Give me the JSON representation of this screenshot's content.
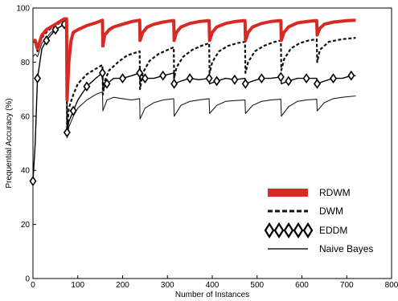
{
  "chart_data": {
    "type": "line",
    "title": "",
    "xlabel": "Number of Instances",
    "ylabel": "Prequential Accuracy (%)",
    "xlim": [
      0,
      800
    ],
    "ylim": [
      0,
      100
    ],
    "xticks": [
      0,
      100,
      200,
      300,
      400,
      500,
      600,
      700,
      800
    ],
    "yticks": [
      0,
      20,
      40,
      60,
      80,
      100
    ],
    "grid": false,
    "legend_position": "bottom-right",
    "series": [
      {
        "name": "RDWM",
        "color": "#d62a22",
        "style": "thick-solid",
        "x": [
          0,
          5,
          10,
          20,
          30,
          40,
          50,
          60,
          70,
          75,
          76,
          80,
          85,
          90,
          100,
          120,
          140,
          155,
          156,
          160,
          170,
          180,
          200,
          220,
          238,
          239,
          245,
          255,
          270,
          290,
          310,
          314,
          315,
          320,
          330,
          350,
          370,
          390,
          393,
          394,
          400,
          410,
          430,
          450,
          470,
          473,
          474,
          480,
          490,
          510,
          530,
          550,
          553,
          554,
          560,
          570,
          590,
          610,
          630,
          633,
          634,
          640,
          650,
          670,
          700,
          720
        ],
        "values": [
          88,
          88,
          85,
          90,
          92,
          93,
          94,
          95,
          96,
          96,
          66,
          80,
          88,
          91,
          92,
          93.5,
          94.5,
          95.5,
          86,
          90,
          92,
          93,
          94,
          95,
          95.5,
          88,
          91,
          93,
          94,
          94.8,
          95.3,
          95.3,
          88,
          91,
          93,
          94.3,
          95,
          95.3,
          95.3,
          88,
          91,
          93,
          94.3,
          95,
          95.3,
          95.3,
          88,
          91,
          93,
          94.3,
          95,
          95.3,
          95.3,
          88,
          91,
          93,
          94.5,
          95,
          95.3,
          95.3,
          90,
          92.5,
          94,
          94.8,
          95.3,
          95.5
        ]
      },
      {
        "name": "DWM",
        "color": "#111111",
        "style": "dashed",
        "x": [
          0,
          5,
          10,
          20,
          30,
          40,
          50,
          60,
          70,
          75,
          76,
          80,
          90,
          100,
          120,
          140,
          155,
          156,
          160,
          170,
          190,
          210,
          238,
          239,
          245,
          260,
          280,
          300,
          314,
          315,
          320,
          335,
          355,
          375,
          393,
          394,
          400,
          415,
          435,
          455,
          473,
          474,
          480,
          495,
          515,
          535,
          553,
          554,
          560,
          575,
          595,
          615,
          633,
          634,
          640,
          660,
          690,
          720
        ],
        "values": [
          88,
          87,
          84,
          89,
          91,
          92.5,
          93.5,
          94.5,
          95,
          95,
          55,
          63,
          68,
          72,
          75.5,
          77.5,
          79,
          68,
          73,
          77,
          80,
          82.5,
          84,
          70,
          76,
          80.5,
          83,
          84.5,
          85.5,
          74,
          78,
          82,
          84.5,
          86,
          87,
          76,
          80,
          84,
          86,
          87,
          87.5,
          76,
          80,
          84,
          86,
          87.3,
          88,
          77,
          81,
          85,
          87,
          88,
          88.5,
          80,
          84.5,
          87.5,
          88.5,
          89
        ]
      },
      {
        "name": "EDDM",
        "color": "#000000",
        "style": "diamond-chain",
        "x": [
          0,
          5,
          10,
          20,
          30,
          40,
          50,
          60,
          70,
          75,
          76,
          80,
          90,
          100,
          120,
          140,
          155,
          156,
          165,
          180,
          200,
          220,
          238,
          239,
          250,
          270,
          290,
          314,
          315,
          330,
          350,
          370,
          393,
          394,
          410,
          430,
          450,
          473,
          474,
          490,
          510,
          530,
          553,
          554,
          570,
          590,
          610,
          633,
          634,
          650,
          670,
          690,
          710,
          720
        ],
        "values": [
          36,
          50,
          74,
          85,
          88,
          90,
          92,
          93,
          94,
          94,
          54,
          58,
          62,
          66,
          71,
          74,
          76,
          70,
          72,
          74,
          74,
          75,
          76,
          73,
          74,
          74,
          75,
          76,
          72,
          73,
          74,
          73.5,
          74,
          72,
          73,
          74,
          73.5,
          74,
          72,
          73,
          74,
          74,
          74.5,
          72,
          73,
          74,
          74,
          74,
          72,
          73,
          74,
          74,
          75,
          75
        ]
      },
      {
        "name": "Naive Bayes",
        "color": "#1f1f1f",
        "style": "thin-solid",
        "x": [
          0,
          5,
          10,
          20,
          30,
          40,
          50,
          60,
          70,
          75,
          76,
          80,
          90,
          100,
          120,
          140,
          155,
          156,
          165,
          180,
          200,
          220,
          238,
          239,
          250,
          270,
          290,
          314,
          315,
          330,
          350,
          370,
          393,
          394,
          410,
          430,
          450,
          473,
          474,
          490,
          510,
          530,
          553,
          554,
          570,
          590,
          610,
          633,
          634,
          650,
          670,
          690,
          720
        ],
        "values": [
          82,
          83,
          82,
          87,
          89,
          91,
          92,
          93,
          94,
          94,
          52,
          56,
          60,
          63,
          66,
          68,
          69,
          62,
          66,
          67,
          66.5,
          66,
          66.5,
          59,
          63,
          65,
          66,
          66.5,
          60,
          64,
          65.5,
          66,
          66.5,
          61,
          64,
          65.5,
          65.8,
          66,
          61,
          64,
          65.5,
          66,
          66.3,
          60,
          63.5,
          65.5,
          66,
          66.3,
          62,
          65,
          66.5,
          67,
          67.5
        ]
      }
    ]
  }
}
